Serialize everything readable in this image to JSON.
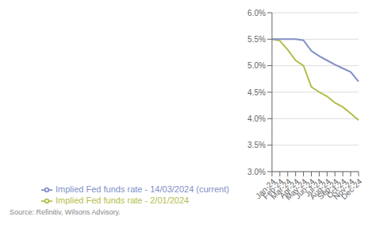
{
  "chart_data": {
    "type": "line",
    "categories": [
      "Jan-24",
      "Feb-24",
      "Mar-24",
      "Apr-24",
      "May-24",
      "Jun-24",
      "Jul-24",
      "Aug-24",
      "Sep-24",
      "Oct-24",
      "Nov-24",
      "Dec-24"
    ],
    "series": [
      {
        "name": "Implied Fed funds rate - 2/01/2024",
        "color": "#b5bd4c",
        "values": [
          5.5,
          5.47,
          5.3,
          5.1,
          5.0,
          4.6,
          4.5,
          4.42,
          4.3,
          4.22,
          4.1,
          3.97
        ]
      },
      {
        "name": "Implied Fed funds rate - 14/03/2024 (current)",
        "color": "#8090c8",
        "values": [
          5.5,
          5.5,
          5.5,
          5.5,
          5.48,
          5.28,
          5.18,
          5.1,
          5.02,
          4.95,
          4.88,
          4.7
        ]
      }
    ],
    "ylim": [
      3.0,
      6.0
    ],
    "yticks": [
      {
        "value": 3.0,
        "label": "3.0%"
      },
      {
        "value": 3.5,
        "label": "3.5%"
      },
      {
        "value": 4.0,
        "label": "4.0%"
      },
      {
        "value": 4.5,
        "label": "4.5%"
      },
      {
        "value": 5.0,
        "label": "5.0%"
      },
      {
        "value": 5.5,
        "label": "5.5%"
      },
      {
        "value": 6.0,
        "label": "6.0%"
      }
    ],
    "grid": true,
    "legend": "lower left",
    "annotations": [
      "Source: Refinitiv, Wilsons Advisory."
    ]
  }
}
